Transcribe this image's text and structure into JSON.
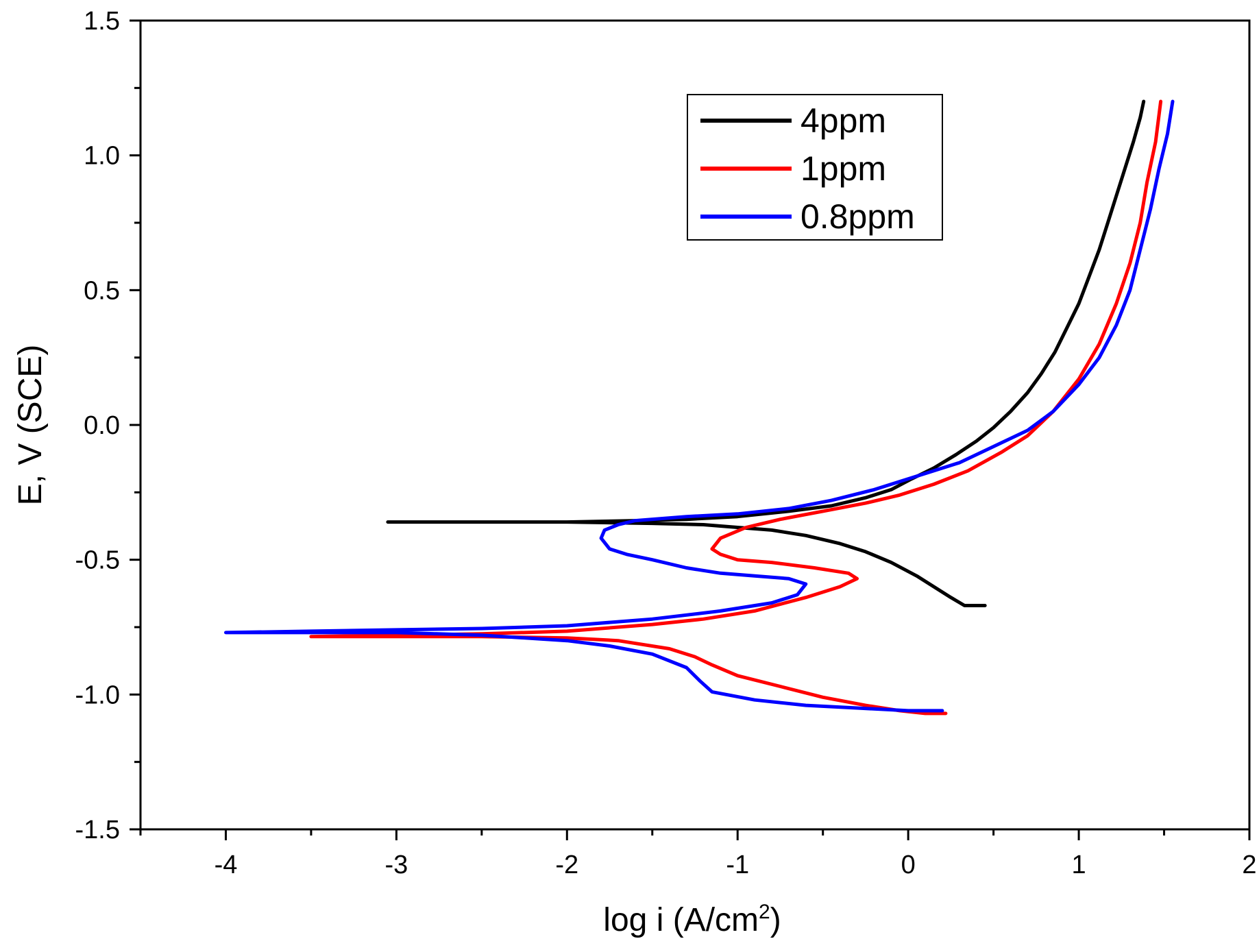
{
  "chart_data": {
    "type": "line",
    "title": "",
    "xlabel": "log i (A/cm",
    "xlabel_superscript": "2",
    "xlabel_suffix": ")",
    "ylabel": "E, V (SCE)",
    "xlim": [
      -4.5,
      2
    ],
    "ylim": [
      -1.5,
      1.5
    ],
    "xticks": [
      -4,
      -3,
      -2,
      -1,
      0,
      1,
      2
    ],
    "xtick_labels": [
      "-4",
      "-3",
      "-2",
      "-1",
      "0",
      "1",
      "2"
    ],
    "yticks": [
      -1.5,
      -1.0,
      -0.5,
      0.0,
      0.5,
      1.0,
      1.5
    ],
    "ytick_labels": [
      "-1.5",
      "-1.0",
      "-0.5",
      "0.0",
      "0.5",
      "1.0",
      "1.5"
    ],
    "legend_position": "top-right",
    "series": [
      {
        "name": "4ppm",
        "color": "#000000",
        "x": [
          -3.05,
          -2.5,
          -2.0,
          -1.5,
          -1.2,
          -1.0,
          -0.8,
          -0.6,
          -0.4,
          -0.25,
          -0.1,
          0.05,
          0.15,
          0.25,
          0.33,
          0.38,
          0.45,
          null,
          1.38,
          1.36,
          1.32,
          1.27,
          1.22,
          1.17,
          1.12,
          1.06,
          1.0,
          0.93,
          0.86,
          0.78,
          0.7,
          0.6,
          0.5,
          0.4,
          0.28,
          0.15,
          0.02,
          -0.1,
          -0.25,
          -0.45,
          -0.7,
          -1.0,
          -1.3,
          -1.6,
          -2.0,
          -2.5,
          -3.05
        ],
        "y": [
          -0.36,
          -0.36,
          -0.36,
          -0.365,
          -0.37,
          -0.38,
          -0.39,
          -0.41,
          -0.44,
          -0.47,
          -0.51,
          -0.56,
          -0.6,
          -0.64,
          -0.67,
          -0.67,
          -0.67,
          null,
          1.2,
          1.14,
          1.05,
          0.95,
          0.85,
          0.75,
          0.65,
          0.55,
          0.45,
          0.36,
          0.27,
          0.19,
          0.12,
          0.05,
          -0.01,
          -0.06,
          -0.11,
          -0.16,
          -0.2,
          -0.24,
          -0.27,
          -0.3,
          -0.32,
          -0.34,
          -0.35,
          -0.355,
          -0.36,
          -0.36,
          -0.36
        ]
      },
      {
        "name": "1ppm",
        "color": "#ff0000",
        "x": [
          0.22,
          0.1,
          -0.05,
          -0.25,
          -0.5,
          -0.75,
          -1.0,
          -1.15,
          -1.25,
          -1.4,
          -1.7,
          -2.0,
          -2.5,
          -3.0,
          -3.5,
          -3.0,
          -2.5,
          -2.0,
          -1.5,
          -1.2,
          -0.9,
          -0.6,
          -0.4,
          -0.3,
          -0.35,
          -0.55,
          -0.8,
          -1.0,
          -1.1,
          -1.15,
          -1.1,
          -0.95,
          -0.75,
          -0.5,
          -0.25,
          -0.05,
          0.15,
          0.35,
          0.55,
          0.7,
          0.85,
          1.0,
          1.12,
          1.22,
          1.3,
          1.36,
          1.4,
          1.45,
          1.48
        ],
        "y": [
          -1.07,
          -1.07,
          -1.06,
          -1.04,
          -1.01,
          -0.97,
          -0.93,
          -0.89,
          -0.86,
          -0.83,
          -0.8,
          -0.79,
          -0.785,
          -0.785,
          -0.785,
          -0.78,
          -0.775,
          -0.765,
          -0.74,
          -0.72,
          -0.69,
          -0.64,
          -0.6,
          -0.57,
          -0.55,
          -0.53,
          -0.51,
          -0.5,
          -0.48,
          -0.46,
          -0.42,
          -0.38,
          -0.35,
          -0.32,
          -0.29,
          -0.26,
          -0.22,
          -0.17,
          -0.1,
          -0.04,
          0.05,
          0.17,
          0.3,
          0.45,
          0.6,
          0.75,
          0.9,
          1.05,
          1.2
        ]
      },
      {
        "name": "0.8ppm",
        "color": "#0000ff",
        "x": [
          0.2,
          0.0,
          -0.3,
          -0.6,
          -0.9,
          -1.15,
          -1.22,
          -1.3,
          -1.5,
          -1.75,
          -2.0,
          -2.5,
          -3.0,
          -3.5,
          -4.0,
          -3.5,
          -3.0,
          -2.5,
          -2.0,
          -1.5,
          -1.1,
          -0.8,
          -0.65,
          -0.6,
          -0.7,
          -0.9,
          -1.1,
          -1.3,
          -1.5,
          -1.65,
          -1.75,
          -1.8,
          -1.78,
          -1.7,
          -1.6,
          -1.3,
          -1.0,
          -0.7,
          -0.45,
          -0.2,
          0.05,
          0.3,
          0.5,
          0.7,
          0.85,
          1.0,
          1.12,
          1.22,
          1.3,
          1.36,
          1.42,
          1.47,
          1.52,
          1.55
        ],
        "y": [
          -1.06,
          -1.06,
          -1.05,
          -1.04,
          -1.02,
          -0.99,
          -0.95,
          -0.9,
          -0.85,
          -0.82,
          -0.8,
          -0.78,
          -0.77,
          -0.77,
          -0.77,
          -0.765,
          -0.76,
          -0.755,
          -0.745,
          -0.72,
          -0.69,
          -0.66,
          -0.63,
          -0.59,
          -0.57,
          -0.56,
          -0.55,
          -0.53,
          -0.5,
          -0.48,
          -0.46,
          -0.42,
          -0.39,
          -0.37,
          -0.355,
          -0.34,
          -0.33,
          -0.31,
          -0.28,
          -0.24,
          -0.19,
          -0.14,
          -0.08,
          -0.02,
          0.05,
          0.15,
          0.25,
          0.37,
          0.5,
          0.65,
          0.8,
          0.95,
          1.08,
          1.2
        ]
      }
    ]
  }
}
